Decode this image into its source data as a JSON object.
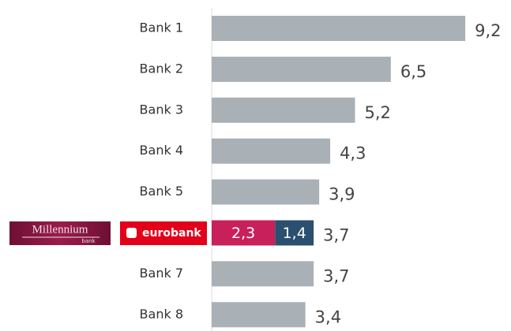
{
  "chart_data": {
    "type": "bar",
    "orientation": "horizontal",
    "stacked": true,
    "categories": [
      "Bank 1",
      "Bank 2",
      "Bank 3",
      "Bank 4",
      "Bank 5",
      null,
      "Bank 7",
      "Bank 8"
    ],
    "series": [
      {
        "color": "#a9b0b6",
        "values": [
          9.2,
          6.5,
          5.2,
          4.3,
          3.9,
          null,
          3.7,
          3.4
        ]
      },
      {
        "name": "Millennium",
        "subname": "bank",
        "color": "#c8205a",
        "values": [
          null,
          null,
          null,
          null,
          null,
          2.3,
          null,
          null
        ],
        "value_labels": [
          null,
          null,
          null,
          null,
          null,
          "2,3",
          null,
          null
        ]
      },
      {
        "name": "eurobank",
        "color": "#2b4f6e",
        "values": [
          null,
          null,
          null,
          null,
          null,
          1.4,
          null,
          null
        ],
        "value_labels": [
          null,
          null,
          null,
          null,
          null,
          "1,4",
          null,
          null
        ]
      }
    ],
    "totals": [
      9.2,
      6.5,
      5.2,
      4.3,
      3.9,
      3.7,
      3.7,
      3.4
    ],
    "total_labels": [
      "9,2",
      "6,5",
      "5,2",
      "4,3",
      "3,9",
      "3,7",
      "3,7",
      "3,4"
    ],
    "xlim": [
      0,
      10
    ]
  }
}
